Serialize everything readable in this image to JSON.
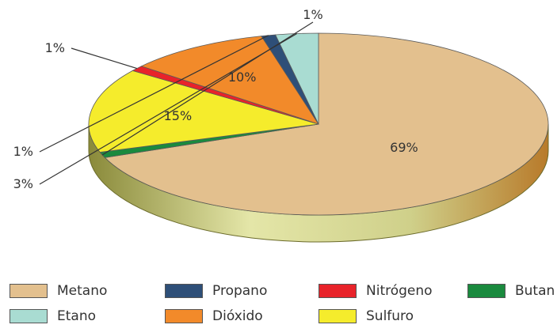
{
  "chart_data": {
    "type": "pie",
    "title": "",
    "legend_position": "bottom",
    "slices": [
      {
        "name": "Metano",
        "value": 69,
        "label": "69%",
        "color": "#e3c08e"
      },
      {
        "name": "Butan",
        "value": 1,
        "label": "1%",
        "color": "#1a8a3e"
      },
      {
        "name": "Sulfuro",
        "value": 15,
        "label": "15%",
        "color": "#f5ec2c"
      },
      {
        "name": "Nitrógeno",
        "value": 1,
        "label": "1%",
        "color": "#e8232a"
      },
      {
        "name": "Dióxido",
        "value": 10,
        "label": "10%",
        "color": "#f28a2a"
      },
      {
        "name": "Propano",
        "value": 1,
        "label": "1%",
        "color": "#2e4f78"
      },
      {
        "name": "Etano",
        "value": 3,
        "label": "3%",
        "color": "#a9dcd2"
      }
    ],
    "legend": [
      {
        "name": "Metano",
        "text": "Metano",
        "color": "#e3c08e"
      },
      {
        "name": "Propano",
        "text": "Propano",
        "color": "#2e4f78"
      },
      {
        "name": "Nitrógeno",
        "text": "Nitrógeno",
        "color": "#e8232a"
      },
      {
        "name": "Butan",
        "text": "Butan",
        "color": "#1a8a3e"
      },
      {
        "name": "Etano",
        "text": "Etano",
        "color": "#a9dcd2"
      },
      {
        "name": "Dióxido",
        "text": "Dióxido",
        "color": "#f28a2a"
      },
      {
        "name": "Sulfuro",
        "text": "Sulfuro",
        "color": "#f5ec2c"
      }
    ]
  }
}
